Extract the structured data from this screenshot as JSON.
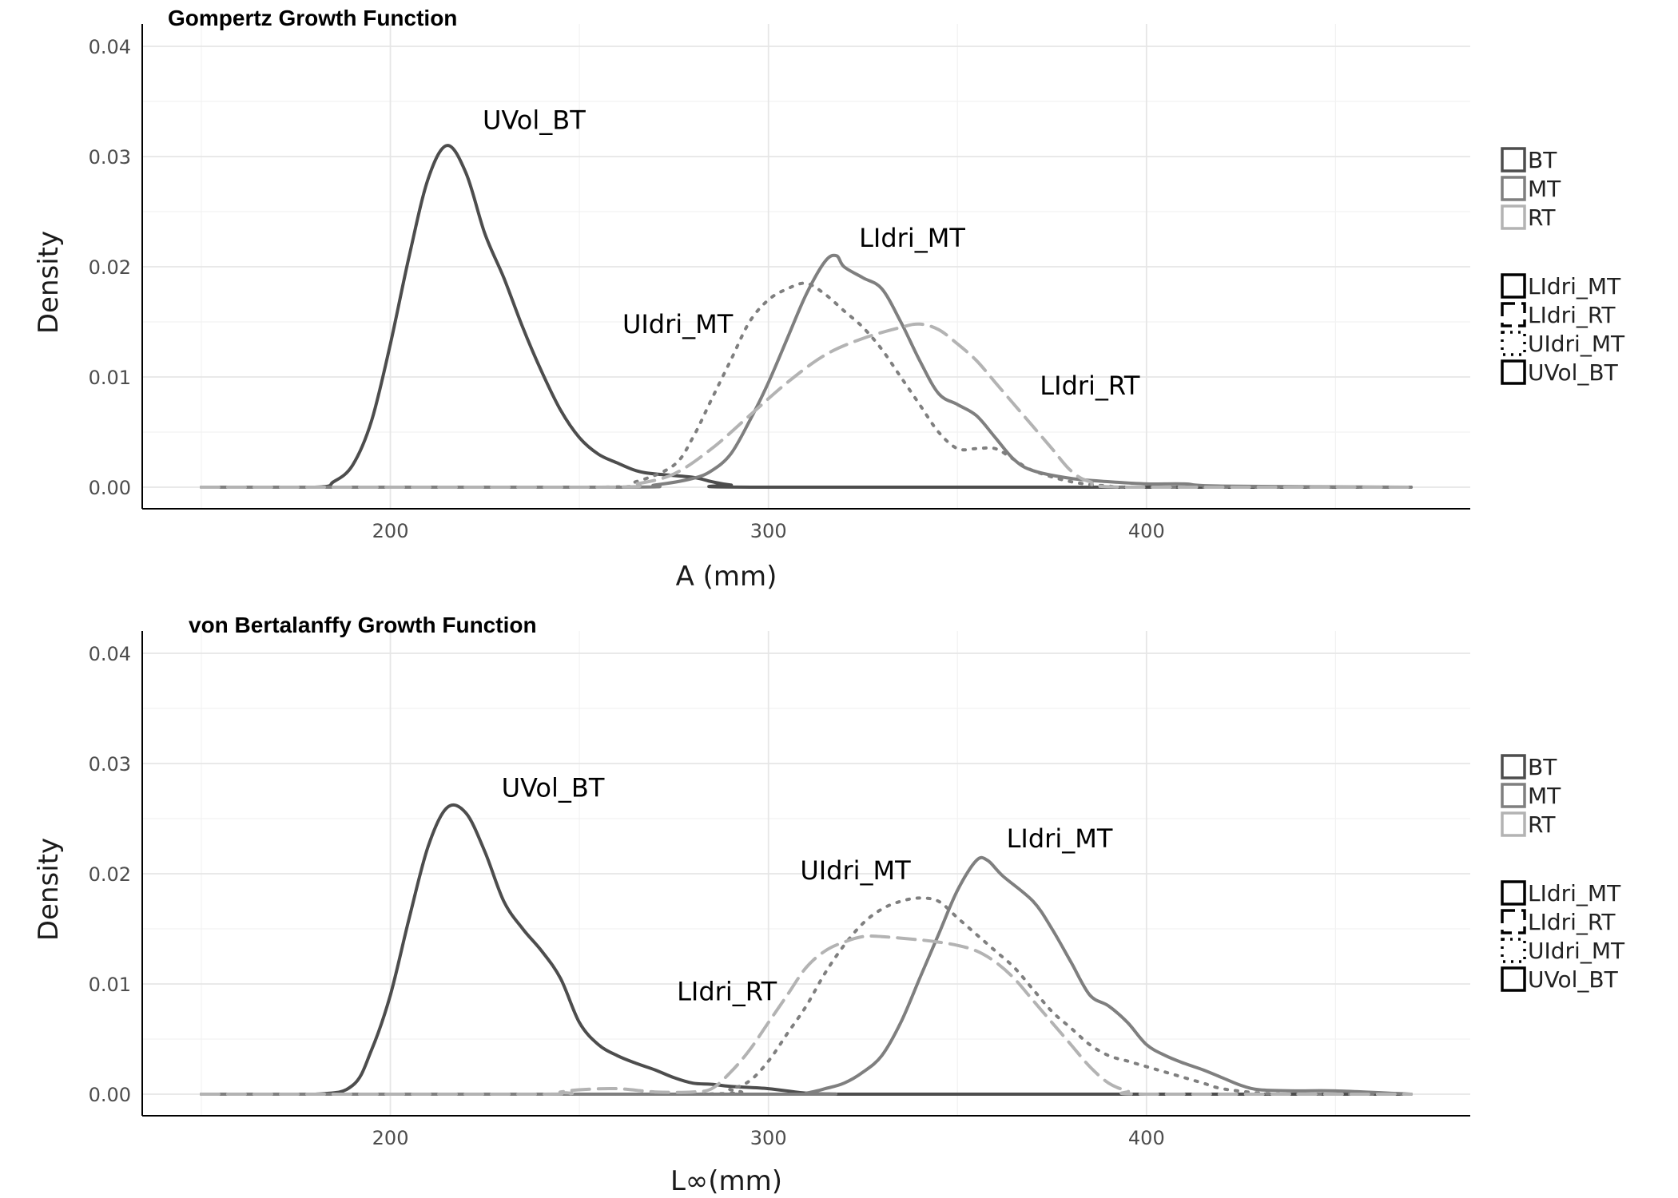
{
  "chart_data": [
    {
      "type": "line",
      "title": "Gompertz Growth Function",
      "xlabel": "A (mm)",
      "ylabel": "Density",
      "xlim": [
        150,
        470
      ],
      "ylim": [
        0,
        0.04
      ],
      "x_ticks": [
        200,
        300,
        400
      ],
      "x_tick_labels": [
        "200",
        "300",
        "400"
      ],
      "y_ticks": [
        0,
        0.01,
        0.02,
        0.03,
        0.04
      ],
      "y_tick_labels": [
        "0.00",
        "0.01",
        "0.02",
        "0.03",
        "0.04"
      ],
      "grid": true,
      "legend_position": "right",
      "legend_color": [
        {
          "label": "BT",
          "color": "#4d4d4d"
        },
        {
          "label": "MT",
          "color": "#7f7f7f"
        },
        {
          "label": "RT",
          "color": "#b3b3b3"
        }
      ],
      "legend_linetype": [
        {
          "label": "LIdri_MT",
          "dash": "solid"
        },
        {
          "label": "LIdri_RT",
          "dash": "dashed"
        },
        {
          "label": "UIdri_MT",
          "dash": "dotted"
        },
        {
          "label": "UVol_BT",
          "dash": "solid"
        }
      ],
      "series": [
        {
          "name": "UVol_BT",
          "color": "#4d4d4d",
          "dash": "solid",
          "points": [
            [
              150,
              0
            ],
            [
              180,
              0
            ],
            [
              185,
              0.0005
            ],
            [
              190,
              0.002
            ],
            [
              195,
              0.006
            ],
            [
              200,
              0.013
            ],
            [
              205,
              0.021
            ],
            [
              210,
              0.028
            ],
            [
              215,
              0.031
            ],
            [
              220,
              0.0285
            ],
            [
              225,
              0.023
            ],
            [
              230,
              0.019
            ],
            [
              235,
              0.0145
            ],
            [
              240,
              0.0105
            ],
            [
              245,
              0.007
            ],
            [
              250,
              0.0045
            ],
            [
              255,
              0.003
            ],
            [
              260,
              0.0022
            ],
            [
              265,
              0.0015
            ],
            [
              270,
              0.0012
            ],
            [
              280,
              0.0009
            ],
            [
              285,
              0.0005
            ],
            [
              290,
              0.0002
            ],
            [
              300,
              0
            ],
            [
              470,
              0
            ]
          ]
        },
        {
          "name": "LIdri_MT",
          "color": "#7f7f7f",
          "dash": "solid",
          "points": [
            [
              150,
              0
            ],
            [
              260,
              0
            ],
            [
              270,
              0.0002
            ],
            [
              280,
              0.0008
            ],
            [
              285,
              0.0015
            ],
            [
              290,
              0.003
            ],
            [
              295,
              0.006
            ],
            [
              300,
              0.0095
            ],
            [
              305,
              0.0135
            ],
            [
              310,
              0.0175
            ],
            [
              315,
              0.0205
            ],
            [
              318,
              0.021
            ],
            [
              320,
              0.02
            ],
            [
              325,
              0.019
            ],
            [
              330,
              0.018
            ],
            [
              335,
              0.015
            ],
            [
              340,
              0.0115
            ],
            [
              345,
              0.0085
            ],
            [
              350,
              0.0075
            ],
            [
              355,
              0.0065
            ],
            [
              360,
              0.0045
            ],
            [
              365,
              0.0025
            ],
            [
              370,
              0.0015
            ],
            [
              380,
              0.0008
            ],
            [
              390,
              0.0005
            ],
            [
              400,
              0.0003
            ],
            [
              410,
              0.0003
            ],
            [
              420,
              0.0001
            ],
            [
              470,
              0
            ]
          ]
        },
        {
          "name": "UIdri_MT",
          "color": "#7f7f7f",
          "dash": "dotted",
          "points": [
            [
              150,
              0
            ],
            [
              255,
              0
            ],
            [
              265,
              0.0005
            ],
            [
              275,
              0.002
            ],
            [
              280,
              0.0045
            ],
            [
              285,
              0.008
            ],
            [
              290,
              0.0115
            ],
            [
              295,
              0.015
            ],
            [
              300,
              0.017
            ],
            [
              305,
              0.018
            ],
            [
              310,
              0.0185
            ],
            [
              315,
              0.0175
            ],
            [
              320,
              0.016
            ],
            [
              325,
              0.0145
            ],
            [
              330,
              0.0125
            ],
            [
              335,
              0.01
            ],
            [
              340,
              0.0075
            ],
            [
              345,
              0.005
            ],
            [
              350,
              0.0035
            ],
            [
              355,
              0.0035
            ],
            [
              360,
              0.0035
            ],
            [
              365,
              0.0025
            ],
            [
              370,
              0.0015
            ],
            [
              380,
              0.0005
            ],
            [
              390,
              0.0001
            ],
            [
              400,
              0
            ],
            [
              470,
              0
            ]
          ]
        },
        {
          "name": "LIdri_RT",
          "color": "#b3b3b3",
          "dash": "dashed",
          "points": [
            [
              150,
              0
            ],
            [
              255,
              0
            ],
            [
              265,
              0.0003
            ],
            [
              275,
              0.0012
            ],
            [
              285,
              0.0035
            ],
            [
              295,
              0.0065
            ],
            [
              305,
              0.0095
            ],
            [
              315,
              0.012
            ],
            [
              325,
              0.0135
            ],
            [
              335,
              0.0145
            ],
            [
              340,
              0.0148
            ],
            [
              345,
              0.0143
            ],
            [
              350,
              0.013
            ],
            [
              355,
              0.0115
            ],
            [
              360,
              0.0095
            ],
            [
              365,
              0.0075
            ],
            [
              370,
              0.0055
            ],
            [
              375,
              0.0035
            ],
            [
              380,
              0.0015
            ],
            [
              385,
              0.0005
            ],
            [
              395,
              0
            ],
            [
              470,
              0
            ]
          ]
        }
      ],
      "annotations": [
        {
          "text": "UVol_BT",
          "x": 238,
          "y": 0.0325
        },
        {
          "text": "LIdri_MT",
          "x": 338,
          "y": 0.0218
        },
        {
          "text": "UIdri_MT",
          "x": 276,
          "y": 0.014
        },
        {
          "text": "LIdri_RT",
          "x": 385,
          "y": 0.0084
        }
      ]
    },
    {
      "type": "line",
      "title": "von Bertalanffy Growth Function",
      "xlabel": "L∞(mm)",
      "ylabel": "Density",
      "xlim": [
        150,
        470
      ],
      "ylim": [
        0,
        0.04
      ],
      "x_ticks": [
        200,
        300,
        400
      ],
      "x_tick_labels": [
        "200",
        "300",
        "400"
      ],
      "y_ticks": [
        0,
        0.01,
        0.02,
        0.03,
        0.04
      ],
      "y_tick_labels": [
        "0.00",
        "0.01",
        "0.02",
        "0.03",
        "0.04"
      ],
      "grid": true,
      "legend_position": "right",
      "legend_color": [
        {
          "label": "BT",
          "color": "#4d4d4d"
        },
        {
          "label": "MT",
          "color": "#7f7f7f"
        },
        {
          "label": "RT",
          "color": "#b3b3b3"
        }
      ],
      "legend_linetype": [
        {
          "label": "LIdri_MT",
          "dash": "solid"
        },
        {
          "label": "LIdri_RT",
          "dash": "dashed"
        },
        {
          "label": "UIdri_MT",
          "dash": "dotted"
        },
        {
          "label": "UVol_BT",
          "dash": "solid"
        }
      ],
      "series": [
        {
          "name": "UVol_BT",
          "color": "#4d4d4d",
          "dash": "solid",
          "points": [
            [
              150,
              0
            ],
            [
              180,
              0
            ],
            [
              190,
              0.0008
            ],
            [
              195,
              0.004
            ],
            [
              200,
              0.009
            ],
            [
              205,
              0.016
            ],
            [
              210,
              0.0225
            ],
            [
              215,
              0.026
            ],
            [
              220,
              0.0255
            ],
            [
              225,
              0.022
            ],
            [
              230,
              0.0175
            ],
            [
              235,
              0.015
            ],
            [
              240,
              0.013
            ],
            [
              245,
              0.0105
            ],
            [
              250,
              0.0065
            ],
            [
              255,
              0.0045
            ],
            [
              260,
              0.0035
            ],
            [
              265,
              0.0028
            ],
            [
              270,
              0.0022
            ],
            [
              275,
              0.0015
            ],
            [
              280,
              0.001
            ],
            [
              285,
              0.0009
            ],
            [
              290,
              0.0007
            ],
            [
              300,
              0.0005
            ],
            [
              310,
              0.0001
            ],
            [
              320,
              0
            ],
            [
              470,
              0
            ]
          ]
        },
        {
          "name": "LIdri_MT",
          "color": "#7f7f7f",
          "dash": "solid",
          "points": [
            [
              150,
              0
            ],
            [
              305,
              0
            ],
            [
              310,
              0.0001
            ],
            [
              315,
              0.0005
            ],
            [
              320,
              0.001
            ],
            [
              325,
              0.002
            ],
            [
              330,
              0.0035
            ],
            [
              335,
              0.0065
            ],
            [
              340,
              0.0105
            ],
            [
              345,
              0.0145
            ],
            [
              350,
              0.0185
            ],
            [
              355,
              0.0212
            ],
            [
              358,
              0.0212
            ],
            [
              362,
              0.0198
            ],
            [
              370,
              0.0175
            ],
            [
              375,
              0.015
            ],
            [
              380,
              0.012
            ],
            [
              385,
              0.009
            ],
            [
              390,
              0.008
            ],
            [
              395,
              0.0065
            ],
            [
              400,
              0.0045
            ],
            [
              405,
              0.0035
            ],
            [
              410,
              0.0028
            ],
            [
              415,
              0.0022
            ],
            [
              420,
              0.0015
            ],
            [
              425,
              0.0008
            ],
            [
              430,
              0.0004
            ],
            [
              440,
              0.0003
            ],
            [
              450,
              0.0003
            ],
            [
              470,
              0
            ]
          ]
        },
        {
          "name": "UIdri_MT",
          "color": "#7f7f7f",
          "dash": "dotted",
          "points": [
            [
              150,
              0
            ],
            [
              280,
              0
            ],
            [
              290,
              0.0005
            ],
            [
              295,
              0.0012
            ],
            [
              300,
              0.003
            ],
            [
              305,
              0.0055
            ],
            [
              310,
              0.008
            ],
            [
              315,
              0.011
            ],
            [
              320,
              0.0135
            ],
            [
              325,
              0.0155
            ],
            [
              330,
              0.0168
            ],
            [
              335,
              0.0175
            ],
            [
              340,
              0.0178
            ],
            [
              345,
              0.0175
            ],
            [
              350,
              0.016
            ],
            [
              355,
              0.0145
            ],
            [
              360,
              0.013
            ],
            [
              365,
              0.0115
            ],
            [
              370,
              0.0095
            ],
            [
              375,
              0.0075
            ],
            [
              380,
              0.006
            ],
            [
              385,
              0.0045
            ],
            [
              390,
              0.0035
            ],
            [
              395,
              0.003
            ],
            [
              400,
              0.0025
            ],
            [
              405,
              0.002
            ],
            [
              410,
              0.0015
            ],
            [
              415,
              0.001
            ],
            [
              420,
              0.0005
            ],
            [
              430,
              0.0001
            ],
            [
              440,
              0
            ],
            [
              470,
              0
            ]
          ]
        },
        {
          "name": "LIdri_RT",
          "color": "#b3b3b3",
          "dash": "dashed",
          "points": [
            [
              150,
              0
            ],
            [
              240,
              0
            ],
            [
              245,
              0.0002
            ],
            [
              250,
              0.0004
            ],
            [
              260,
              0.0005
            ],
            [
              270,
              0.0002
            ],
            [
              280,
              0.0002
            ],
            [
              285,
              0.0005
            ],
            [
              290,
              0.002
            ],
            [
              295,
              0.004
            ],
            [
              300,
              0.0065
            ],
            [
              305,
              0.009
            ],
            [
              310,
              0.0115
            ],
            [
              315,
              0.013
            ],
            [
              320,
              0.0138
            ],
            [
              325,
              0.0143
            ],
            [
              330,
              0.0143
            ],
            [
              340,
              0.014
            ],
            [
              345,
              0.0138
            ],
            [
              350,
              0.0135
            ],
            [
              355,
              0.013
            ],
            [
              360,
              0.012
            ],
            [
              365,
              0.0105
            ],
            [
              370,
              0.0085
            ],
            [
              375,
              0.0065
            ],
            [
              380,
              0.0045
            ],
            [
              385,
              0.0025
            ],
            [
              390,
              0.001
            ],
            [
              395,
              0.0003
            ],
            [
              400,
              0
            ],
            [
              470,
              0
            ]
          ]
        }
      ],
      "annotations": [
        {
          "text": "UVol_BT",
          "x": 243,
          "y": 0.027
        },
        {
          "text": "LIdri_MT",
          "x": 377,
          "y": 0.0224
        },
        {
          "text": "UIdri_MT",
          "x": 323,
          "y": 0.0195
        },
        {
          "text": "LIdri_RT",
          "x": 289,
          "y": 0.0085
        }
      ]
    }
  ]
}
